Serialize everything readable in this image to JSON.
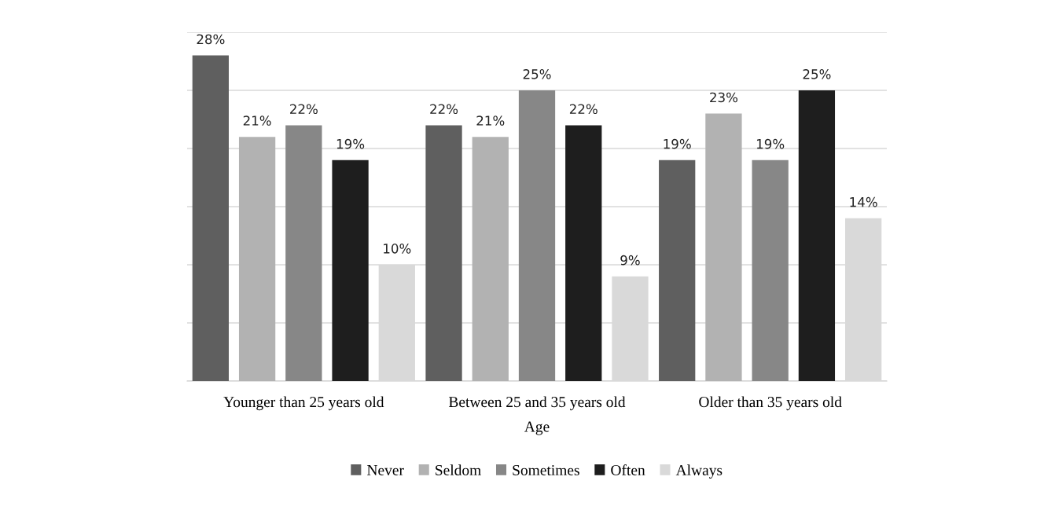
{
  "chart_data": {
    "type": "bar",
    "xlabel": "Age",
    "categories": [
      "Younger than 25 years old",
      "Between 25 and 35 years old",
      "Older than 35 years old"
    ],
    "series": [
      {
        "name": "Never",
        "color": "#5f5f5f",
        "values": [
          28,
          22,
          19
        ],
        "value_labels": [
          "28%",
          "22%",
          "19%"
        ]
      },
      {
        "name": "Seldom",
        "color": "#b2b2b2",
        "values": [
          21,
          21,
          23
        ],
        "value_labels": [
          "21%",
          "21%",
          "23%"
        ]
      },
      {
        "name": "Sometimes",
        "color": "#878787",
        "values": [
          22,
          25,
          19
        ],
        "value_labels": [
          "22%",
          "25%",
          "19%"
        ]
      },
      {
        "name": "Often",
        "color": "#1e1e1e",
        "values": [
          19,
          22,
          25
        ],
        "value_labels": [
          "19%",
          "22%",
          "25%"
        ]
      },
      {
        "name": "Always",
        "color": "#d9d9d9",
        "values": [
          10,
          9,
          14
        ],
        "value_labels": [
          "10%",
          "9%",
          "14%"
        ]
      }
    ],
    "ylim": [
      0,
      30
    ],
    "yticks": [
      {
        "value": 0,
        "label": null
      },
      {
        "value": 5,
        "label": null
      },
      {
        "value": 10,
        "label": null
      },
      {
        "value": 15,
        "label": null
      },
      {
        "value": 20,
        "label": null
      },
      {
        "value": 25,
        "label": null
      },
      {
        "value": 30,
        "label": null
      }
    ],
    "tick_labels": "x",
    "grid": "y",
    "legend": "bottom"
  }
}
